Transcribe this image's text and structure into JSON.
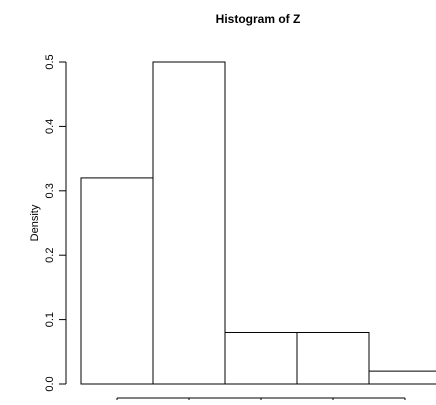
{
  "chart_data": {
    "type": "bar",
    "title": "Histogram of Z",
    "xlabel": "",
    "ylabel": "Density",
    "bins": [
      {
        "density": 0.32
      },
      {
        "density": 0.5
      },
      {
        "density": 0.08
      },
      {
        "density": 0.08
      },
      {
        "density": 0.02
      }
    ],
    "yticks": [
      "0.0",
      "0.1",
      "0.2",
      "0.3",
      "0.4",
      "0.5"
    ],
    "ylim": [
      0,
      0.5
    ],
    "grid": false,
    "legend": "none",
    "colors": {
      "bar_fill": "#ffffff",
      "bar_stroke": "#000000",
      "axis": "#000000"
    }
  }
}
